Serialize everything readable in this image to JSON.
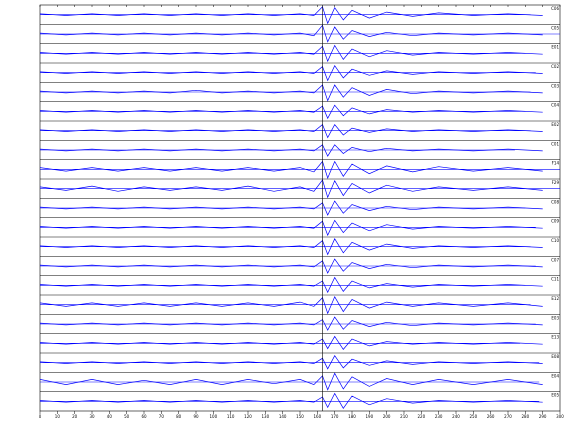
{
  "chart_data": {
    "type": "waveform",
    "xlim": [
      0,
      300
    ],
    "xticks": [
      0,
      10,
      20,
      30,
      40,
      50,
      60,
      70,
      80,
      90,
      100,
      110,
      120,
      130,
      140,
      150,
      160,
      170,
      180,
      190,
      200,
      210,
      220,
      230,
      240,
      250,
      260,
      270,
      280,
      290,
      300
    ],
    "x": [
      0,
      15,
      30,
      45,
      60,
      75,
      90,
      105,
      120,
      135,
      150,
      158,
      163,
      166,
      170,
      175,
      180,
      190,
      200,
      215,
      230,
      250,
      270,
      290
    ],
    "marker_x": 163,
    "color": "#0000ff",
    "series": [
      {
        "name": "C06",
        "end": 283,
        "values": [
          1,
          1,
          1,
          1,
          1,
          1,
          1,
          1,
          1,
          1,
          1,
          1,
          9,
          10,
          8,
          6,
          5,
          4,
          3,
          2,
          2,
          1,
          1,
          1
        ]
      },
      {
        "name": "C05",
        "end": 300,
        "values": [
          1,
          1,
          1,
          1,
          1,
          1,
          1,
          1,
          1,
          1,
          1,
          2,
          10,
          9,
          8,
          6,
          4,
          3,
          2,
          2,
          1,
          1,
          1,
          1
        ]
      },
      {
        "name": "E01",
        "end": 280,
        "values": [
          1,
          1,
          1,
          1,
          1,
          1,
          1,
          1,
          1,
          1,
          1,
          1,
          8,
          9,
          9,
          7,
          5,
          4,
          3,
          2,
          1,
          1,
          1,
          1
        ]
      },
      {
        "name": "C02",
        "end": 286,
        "values": [
          1,
          1,
          1,
          1,
          1,
          1,
          1,
          1,
          1,
          1,
          1,
          1,
          7,
          9,
          8,
          6,
          4,
          3,
          2,
          2,
          1,
          1,
          1,
          1
        ]
      },
      {
        "name": "C03",
        "end": 283,
        "values": [
          1,
          1,
          1,
          1,
          1,
          1,
          2,
          1,
          1,
          1,
          1,
          1,
          8,
          10,
          8,
          6,
          5,
          4,
          3,
          2,
          1,
          1,
          1,
          1
        ]
      },
      {
        "name": "C04",
        "end": 280,
        "values": [
          1,
          1,
          1,
          1,
          1,
          1,
          1,
          1,
          1,
          1,
          1,
          1,
          6,
          8,
          7,
          5,
          4,
          3,
          2,
          1,
          1,
          1,
          1,
          1
        ]
      },
      {
        "name": "E02",
        "end": 283,
        "values": [
          1,
          1,
          1,
          1,
          1,
          1,
          1,
          1,
          1,
          1,
          1,
          1,
          7,
          8,
          7,
          5,
          3,
          2,
          2,
          1,
          1,
          1,
          1,
          1
        ]
      },
      {
        "name": "C01",
        "end": 274,
        "values": [
          1,
          1,
          1,
          1,
          1,
          1,
          1,
          1,
          1,
          1,
          1,
          1,
          6,
          7,
          6,
          4,
          3,
          2,
          2,
          1,
          1,
          1,
          1,
          1
        ]
      },
      {
        "name": "F14",
        "end": 300,
        "values": [
          2,
          2,
          2,
          2,
          2,
          2,
          2,
          2,
          2,
          2,
          2,
          3,
          9,
          10,
          9,
          8,
          6,
          5,
          4,
          3,
          3,
          2,
          2,
          2
        ]
      },
      {
        "name": "F29",
        "end": 300,
        "values": [
          2,
          2,
          3,
          3,
          2,
          2,
          2,
          2,
          3,
          3,
          2,
          3,
          10,
          10,
          9,
          8,
          6,
          5,
          4,
          3,
          2,
          2,
          2,
          2
        ]
      },
      {
        "name": "C08",
        "end": 280,
        "values": [
          1,
          1,
          1,
          1,
          1,
          1,
          1,
          1,
          1,
          1,
          1,
          1,
          6,
          8,
          8,
          6,
          4,
          3,
          2,
          2,
          1,
          1,
          1,
          1
        ]
      },
      {
        "name": "C09",
        "end": 286,
        "values": [
          1,
          1,
          1,
          1,
          1,
          1,
          1,
          1,
          1,
          1,
          1,
          1,
          7,
          9,
          8,
          6,
          5,
          4,
          3,
          2,
          1,
          1,
          1,
          1
        ]
      },
      {
        "name": "C10",
        "end": 283,
        "values": [
          1,
          1,
          1,
          1,
          1,
          1,
          1,
          1,
          1,
          1,
          1,
          1,
          7,
          9,
          9,
          7,
          5,
          4,
          3,
          2,
          1,
          1,
          1,
          1
        ]
      },
      {
        "name": "C07",
        "end": 286,
        "values": [
          1,
          1,
          1,
          1,
          1,
          1,
          1,
          1,
          1,
          1,
          1,
          1,
          6,
          8,
          8,
          6,
          4,
          3,
          2,
          2,
          1,
          1,
          1,
          1
        ]
      },
      {
        "name": "C11",
        "end": 280,
        "values": [
          1,
          1,
          1,
          1,
          1,
          1,
          1,
          1,
          1,
          1,
          1,
          1,
          5,
          8,
          9,
          7,
          5,
          3,
          2,
          2,
          1,
          1,
          1,
          1
        ]
      },
      {
        "name": "E12",
        "end": 283,
        "values": [
          2,
          2,
          2,
          2,
          2,
          2,
          2,
          2,
          2,
          2,
          3,
          2,
          8,
          10,
          9,
          8,
          6,
          4,
          3,
          2,
          2,
          2,
          2,
          2
        ]
      },
      {
        "name": "E03",
        "end": 286,
        "values": [
          1,
          1,
          1,
          1,
          1,
          1,
          1,
          1,
          1,
          1,
          1,
          1,
          5,
          7,
          8,
          6,
          4,
          3,
          2,
          2,
          1,
          1,
          1,
          1
        ]
      },
      {
        "name": "E13",
        "end": 277,
        "values": [
          1,
          1,
          1,
          1,
          1,
          1,
          1,
          1,
          1,
          1,
          1,
          1,
          5,
          6,
          8,
          7,
          5,
          3,
          2,
          1,
          1,
          1,
          1,
          1
        ]
      },
      {
        "name": "E08",
        "end": 288,
        "values": [
          1,
          1,
          1,
          1,
          1,
          1,
          1,
          1,
          1,
          1,
          1,
          1,
          5,
          7,
          8,
          6,
          4,
          3,
          2,
          2,
          1,
          1,
          1,
          1
        ]
      },
      {
        "name": "E04",
        "end": 288,
        "values": [
          3,
          3,
          3,
          3,
          2,
          3,
          3,
          3,
          3,
          2,
          3,
          3,
          7,
          9,
          10,
          8,
          6,
          5,
          4,
          3,
          3,
          3,
          3,
          3
        ]
      },
      {
        "name": "E05",
        "end": 288,
        "values": [
          1,
          1,
          1,
          1,
          1,
          1,
          1,
          1,
          1,
          1,
          1,
          1,
          5,
          7,
          9,
          8,
          6,
          4,
          3,
          2,
          1,
          1,
          1,
          1
        ]
      }
    ]
  }
}
